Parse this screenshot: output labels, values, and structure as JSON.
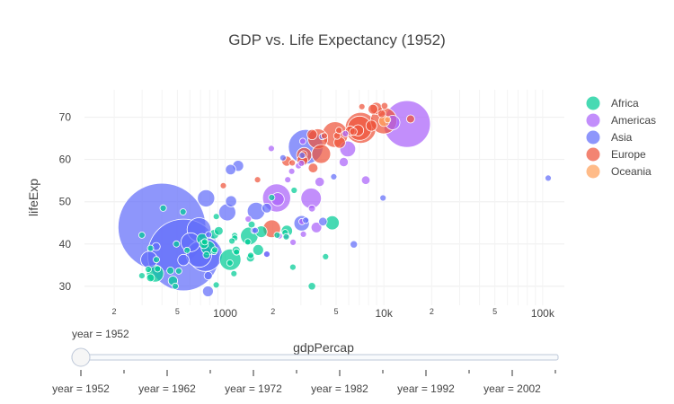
{
  "chart_data": {
    "type": "scatter",
    "subtype": "bubble",
    "title": "GDP vs. Life Expectancy (1952)",
    "xlabel": "gdpPercap",
    "ylabel": "lifeExp",
    "x_scale": "log",
    "xlim": [
      130,
      137000
    ],
    "ylim": [
      25.5,
      76.5
    ],
    "y_ticks": [
      30,
      40,
      50,
      60,
      70
    ],
    "x_major_ticks": [
      {
        "value": 1000,
        "label": "1000"
      },
      {
        "value": 10000,
        "label": "10k"
      },
      {
        "value": 100000,
        "label": "100k"
      }
    ],
    "x_minor_ticks": [
      {
        "value": 200,
        "label": "2"
      },
      {
        "value": 500,
        "label": "5"
      },
      {
        "value": 2000,
        "label": "2"
      },
      {
        "value": 5000,
        "label": "5"
      },
      {
        "value": 20000,
        "label": "2"
      },
      {
        "value": 50000,
        "label": "5"
      }
    ],
    "grid": true,
    "legend_position": "right",
    "size_note": "bubble size encodes population (approximate)",
    "series": [
      {
        "name": "Africa",
        "color": "#00cc96",
        "points": [
          {
            "x": 2449,
            "y": 43.1,
            "pop": 9.3
          },
          {
            "x": 3521,
            "y": 30.0,
            "pop": 4.2
          },
          {
            "x": 851,
            "y": 38.2,
            "pop": 1.7
          },
          {
            "x": 543,
            "y": 47.6,
            "pop": 0.4
          },
          {
            "x": 339,
            "y": 32.0,
            "pop": 4.5
          },
          {
            "x": 339,
            "y": 39.0,
            "pop": 2.4
          },
          {
            "x": 1173,
            "y": 38.5,
            "pop": 5.0
          },
          {
            "x": 1071,
            "y": 35.5,
            "pop": 1.3
          },
          {
            "x": 1179,
            "y": 38.1,
            "pop": 2.7
          },
          {
            "x": 1103,
            "y": 40.7,
            "pop": 0.2
          },
          {
            "x": 781,
            "y": 39.1,
            "pop": 14.1
          },
          {
            "x": 2126,
            "y": 42.1,
            "pop": 0.9
          },
          {
            "x": 1389,
            "y": 40.5,
            "pop": 2.9
          },
          {
            "x": 2670,
            "y": 34.5,
            "pop": 0.06
          },
          {
            "x": 1419,
            "y": 41.9,
            "pop": 22.2
          },
          {
            "x": 375,
            "y": 34.1,
            "pop": 0.2
          },
          {
            "x": 328,
            "y": 34.0,
            "pop": 1.4
          },
          {
            "x": 362,
            "y": 33.0,
            "pop": 20.9
          },
          {
            "x": 4293,
            "y": 37.0,
            "pop": 0.4
          },
          {
            "x": 485,
            "y": 30.0,
            "pop": 0.3
          },
          {
            "x": 911,
            "y": 43.1,
            "pop": 5.6
          },
          {
            "x": 510,
            "y": 33.6,
            "pop": 2.7
          },
          {
            "x": 299,
            "y": 32.5,
            "pop": 0.6
          },
          {
            "x": 853,
            "y": 42.3,
            "pop": 6.5
          },
          {
            "x": 299,
            "y": 42.1,
            "pop": 0.7
          },
          {
            "x": 576,
            "y": 38.5,
            "pop": 0.9
          },
          {
            "x": 2388,
            "y": 42.7,
            "pop": 1.0
          },
          {
            "x": 1443,
            "y": 36.7,
            "pop": 4.8
          },
          {
            "x": 369,
            "y": 36.3,
            "pop": 2.9
          },
          {
            "x": 452,
            "y": 33.7,
            "pop": 3.8
          },
          {
            "x": 744,
            "y": 40.5,
            "pop": 1.0
          },
          {
            "x": 1967,
            "y": 50.99,
            "pop": 0.5
          },
          {
            "x": 1688,
            "y": 42.9,
            "pop": 9.9
          },
          {
            "x": 469,
            "y": 31.3,
            "pop": 6.4
          },
          {
            "x": 2424,
            "y": 41.7,
            "pop": 0.5
          },
          {
            "x": 762,
            "y": 37.4,
            "pop": 3.4
          },
          {
            "x": 1077,
            "y": 36.3,
            "pop": 33.1
          },
          {
            "x": 2719,
            "y": 52.7,
            "pop": 0.26
          },
          {
            "x": 493,
            "y": 40.0,
            "pop": 2.5
          },
          {
            "x": 880,
            "y": 46.5,
            "pop": 0.06
          },
          {
            "x": 1450,
            "y": 37.3,
            "pop": 2.8
          },
          {
            "x": 879,
            "y": 30.3,
            "pop": 2.1
          },
          {
            "x": 1136,
            "y": 32.98,
            "pop": 2.5
          },
          {
            "x": 4725,
            "y": 45.0,
            "pop": 14.3
          },
          {
            "x": 1615,
            "y": 38.6,
            "pop": 8.5
          },
          {
            "x": 1149,
            "y": 41.4,
            "pop": 0.3
          },
          {
            "x": 716,
            "y": 41.2,
            "pop": 8.3
          },
          {
            "x": 860,
            "y": 38.6,
            "pop": 1.2
          },
          {
            "x": 1468,
            "y": 44.6,
            "pop": 3.6
          },
          {
            "x": 735,
            "y": 39.98,
            "pop": 5.8
          },
          {
            "x": 1147,
            "y": 42.0,
            "pop": 2.7
          },
          {
            "x": 407,
            "y": 48.5,
            "pop": 3.1
          }
        ]
      },
      {
        "name": "Americas",
        "color": "#ab63fa",
        "points": [
          {
            "x": 5911,
            "y": 62.5,
            "pop": 17.9
          },
          {
            "x": 2677,
            "y": 40.4,
            "pop": 2.9
          },
          {
            "x": 2109,
            "y": 50.9,
            "pop": 56.6
          },
          {
            "x": 11367,
            "y": 68.75,
            "pop": 14.8
          },
          {
            "x": 3940,
            "y": 54.7,
            "pop": 6.4
          },
          {
            "x": 2144,
            "y": 50.6,
            "pop": 12.4
          },
          {
            "x": 2627,
            "y": 57.2,
            "pop": 0.9
          },
          {
            "x": 5587,
            "y": 59.4,
            "pop": 6.0
          },
          {
            "x": 1398,
            "y": 45.9,
            "pop": 2.5
          },
          {
            "x": 3522,
            "y": 48.4,
            "pop": 3.5
          },
          {
            "x": 3048,
            "y": 45.3,
            "pop": 2.0
          },
          {
            "x": 2428,
            "y": 42.0,
            "pop": 3.1
          },
          {
            "x": 1840,
            "y": 37.6,
            "pop": 3.2
          },
          {
            "x": 2194,
            "y": 41.9,
            "pop": 1.5
          },
          {
            "x": 2899,
            "y": 58.5,
            "pop": 1.4
          },
          {
            "x": 3478,
            "y": 50.8,
            "pop": 30.1
          },
          {
            "x": 3112,
            "y": 42.3,
            "pop": 1.2
          },
          {
            "x": 2480,
            "y": 55.2,
            "pop": 0.9
          },
          {
            "x": 1953,
            "y": 62.6,
            "pop": 1.6
          },
          {
            "x": 3759,
            "y": 43.9,
            "pop": 8.0
          },
          {
            "x": 3082,
            "y": 64.3,
            "pop": 2.2
          },
          {
            "x": 3024,
            "y": 59.1,
            "pop": 0.7
          },
          {
            "x": 13990,
            "y": 68.4,
            "pop": 157.6
          },
          {
            "x": 5717,
            "y": 66.1,
            "pop": 2.3
          },
          {
            "x": 7690,
            "y": 55.1,
            "pop": 5.4
          }
        ]
      },
      {
        "name": "Asia",
        "color": "#636efa",
        "points": [
          {
            "x": 779,
            "y": 28.8,
            "pop": 8.4
          },
          {
            "x": 9867,
            "y": 50.9,
            "pop": 0.12
          },
          {
            "x": 684,
            "y": 37.5,
            "pop": 46.9
          },
          {
            "x": 368,
            "y": 39.4,
            "pop": 4.7
          },
          {
            "x": 400,
            "y": 44.0,
            "pop": 556.3
          },
          {
            "x": 3054,
            "y": 60.96,
            "pop": 2.1
          },
          {
            "x": 547,
            "y": 37.4,
            "pop": 372.0
          },
          {
            "x": 750,
            "y": 37.5,
            "pop": 82.1
          },
          {
            "x": 3035,
            "y": 44.9,
            "pop": 17.3
          },
          {
            "x": 4130,
            "y": 45.3,
            "pop": 5.4
          },
          {
            "x": 4087,
            "y": 65.4,
            "pop": 1.6
          },
          {
            "x": 3217,
            "y": 63.0,
            "pop": 86.5
          },
          {
            "x": 1547,
            "y": 43.2,
            "pop": 0.6
          },
          {
            "x": 1089,
            "y": 50.1,
            "pop": 8.9
          },
          {
            "x": 1031,
            "y": 47.5,
            "pop": 20.9
          },
          {
            "x": 108382,
            "y": 55.6,
            "pop": 0.16
          },
          {
            "x": 4835,
            "y": 55.9,
            "pop": 1.4
          },
          {
            "x": 1831,
            "y": 48.5,
            "pop": 6.7
          },
          {
            "x": 787,
            "y": 42.2,
            "pop": 0.8
          },
          {
            "x": 332,
            "y": 36.3,
            "pop": 20.1
          },
          {
            "x": 546,
            "y": 36.2,
            "pop": 9.2
          },
          {
            "x": 1829,
            "y": 37.6,
            "pop": 0.5
          },
          {
            "x": 685,
            "y": 43.4,
            "pop": 41.3
          },
          {
            "x": 1568,
            "y": 47.8,
            "pop": 22.4
          },
          {
            "x": 6460,
            "y": 39.9,
            "pop": 4.0
          },
          {
            "x": 2315,
            "y": 60.4,
            "pop": 1.1
          },
          {
            "x": 1083,
            "y": 57.6,
            "pop": 7.98
          },
          {
            "x": 1207,
            "y": 58.5,
            "pop": 8.6
          },
          {
            "x": 758,
            "y": 50.8,
            "pop": 21.3
          },
          {
            "x": 605,
            "y": 40.4,
            "pop": 26.2
          },
          {
            "x": 1516,
            "y": 43.2,
            "pop": 1.0
          },
          {
            "x": 782,
            "y": 32.5,
            "pop": 4.96
          },
          {
            "x": 3217,
            "y": 45.6,
            "pop": 2.0
          }
        ]
      },
      {
        "name": "Europe",
        "color": "#ef553b",
        "points": [
          {
            "x": 1601,
            "y": 55.2,
            "pop": 1.3
          },
          {
            "x": 6137,
            "y": 66.8,
            "pop": 6.9
          },
          {
            "x": 8343,
            "y": 68.0,
            "pop": 8.7
          },
          {
            "x": 974,
            "y": 53.8,
            "pop": 2.8
          },
          {
            "x": 2444,
            "y": 59.6,
            "pop": 7.3
          },
          {
            "x": 3119,
            "y": 61.2,
            "pop": 3.9
          },
          {
            "x": 6876,
            "y": 66.9,
            "pop": 9.1
          },
          {
            "x": 9692,
            "y": 70.8,
            "pop": 4.3
          },
          {
            "x": 6425,
            "y": 66.6,
            "pop": 4.1
          },
          {
            "x": 7030,
            "y": 67.4,
            "pop": 42.5
          },
          {
            "x": 7144,
            "y": 67.5,
            "pop": 69.1
          },
          {
            "x": 3531,
            "y": 65.9,
            "pop": 7.7
          },
          {
            "x": 5264,
            "y": 64.0,
            "pop": 9.5
          },
          {
            "x": 7268,
            "y": 72.5,
            "pop": 0.15
          },
          {
            "x": 5211,
            "y": 66.9,
            "pop": 2.95
          },
          {
            "x": 4931,
            "y": 65.9,
            "pop": 47.7
          },
          {
            "x": 2648,
            "y": 59.2,
            "pop": 0.4
          },
          {
            "x": 8942,
            "y": 72.1,
            "pop": 10.4
          },
          {
            "x": 10095,
            "y": 72.7,
            "pop": 3.3
          },
          {
            "x": 4029,
            "y": 61.3,
            "pop": 25.7
          },
          {
            "x": 3068,
            "y": 59.8,
            "pop": 8.5
          },
          {
            "x": 3145,
            "y": 61.05,
            "pop": 16.6
          },
          {
            "x": 3581,
            "y": 57.99,
            "pop": 6.7
          },
          {
            "x": 5074,
            "y": 65.6,
            "pop": 3.6
          },
          {
            "x": 4215,
            "y": 65.6,
            "pop": 1.5
          },
          {
            "x": 3834,
            "y": 64.9,
            "pop": 28.5
          },
          {
            "x": 8528,
            "y": 71.9,
            "pop": 7.1
          },
          {
            "x": 14734,
            "y": 69.6,
            "pop": 4.8
          },
          {
            "x": 1969,
            "y": 43.6,
            "pop": 22.2
          },
          {
            "x": 9980,
            "y": 69.2,
            "pop": 50.4
          }
        ]
      },
      {
        "name": "Oceania",
        "color": "#ffa15a",
        "points": [
          {
            "x": 10040,
            "y": 69.1,
            "pop": 8.7
          },
          {
            "x": 10557,
            "y": 69.4,
            "pop": 1.99
          }
        ]
      }
    ]
  },
  "slider": {
    "current_label": "year = 1952",
    "labels": [
      "year = 1952",
      "year = 1962",
      "year = 1972",
      "year = 1982",
      "year = 1992",
      "year = 2002"
    ],
    "value_index": 0,
    "step_count": 12
  }
}
